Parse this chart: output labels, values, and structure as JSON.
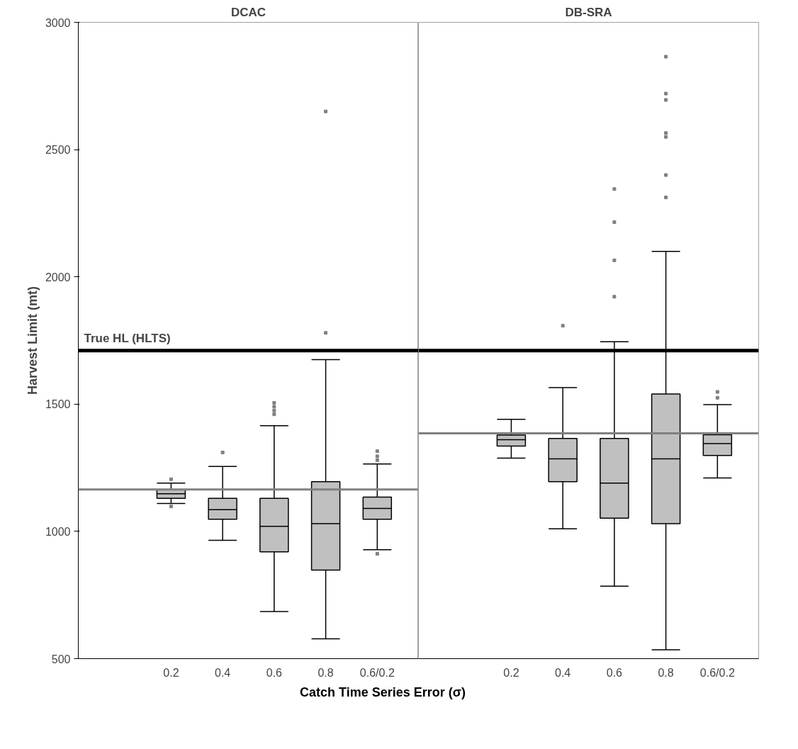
{
  "chart_data": [
    {
      "type": "box",
      "title": "DCAC",
      "xlabel": "Catch Time Series Error (σ)",
      "ylabel": "Harvest Limit (mt)",
      "categories": [
        "0.2",
        "0.4",
        "0.6",
        "0.8",
        "0.6/0.2"
      ],
      "series": [
        {
          "color": "#c0c0c0",
          "boxes": [
            {
              "low": 1110,
              "q1": 1130,
              "median": 1148,
              "q3": 1165,
              "high": 1190,
              "outliers": [
                1205,
                1098
              ]
            },
            {
              "low": 965,
              "q1": 1048,
              "median": 1085,
              "q3": 1130,
              "high": 1255,
              "outliers": [
                1310
              ]
            },
            {
              "low": 685,
              "q1": 920,
              "median": 1020,
              "q3": 1130,
              "high": 1415,
              "outliers": [
                1460,
                1475,
                1490,
                1505
              ]
            },
            {
              "low": 578,
              "q1": 848,
              "median": 1030,
              "q3": 1195,
              "high": 1675,
              "outliers": [
                1780,
                2650
              ]
            },
            {
              "low": 928,
              "q1": 1048,
              "median": 1090,
              "q3": 1135,
              "high": 1265,
              "outliers": [
                1280,
                1295,
                1315,
                912
              ]
            }
          ]
        }
      ],
      "ylim": [
        500,
        3000
      ],
      "yticks": [
        500,
        1000,
        1500,
        2000,
        2500,
        3000
      ],
      "grid": false,
      "ref_lines": [
        {
          "axis": "y",
          "value": 1710,
          "label": "True HL (HLTS)",
          "color": "#000000"
        },
        {
          "axis": "y",
          "value": 1165,
          "color": "#808080"
        }
      ]
    },
    {
      "type": "box",
      "title": "DB-SRA",
      "categories": [
        "0.2",
        "0.4",
        "0.6",
        "0.8",
        "0.6/0.2"
      ],
      "series": [
        {
          "color": "#c0c0c0",
          "boxes": [
            {
              "low": 1288,
              "q1": 1335,
              "median": 1360,
              "q3": 1378,
              "high": 1440
            },
            {
              "low": 1010,
              "q1": 1195,
              "median": 1285,
              "q3": 1365,
              "high": 1565,
              "outliers": [
                1808
              ]
            },
            {
              "low": 785,
              "q1": 1052,
              "median": 1190,
              "q3": 1365,
              "high": 1745,
              "outliers": [
                1922,
                2065,
                2215,
                2345
              ]
            },
            {
              "low": 535,
              "q1": 1030,
              "median": 1285,
              "q3": 1540,
              "high": 2100,
              "outliers": [
                2312,
                2400,
                2550,
                2565,
                2695,
                2720,
                2865
              ]
            },
            {
              "low": 1210,
              "q1": 1298,
              "median": 1345,
              "q3": 1380,
              "high": 1498,
              "outliers": [
                1525,
                1548
              ]
            }
          ]
        }
      ],
      "ylim": [
        500,
        3000
      ],
      "yticks": [
        500,
        1000,
        1500,
        2000,
        2500,
        3000
      ],
      "grid": false,
      "tick_labels": "x",
      "ref_lines": [
        {
          "axis": "y",
          "value": 1710,
          "color": "#000000"
        },
        {
          "axis": "y",
          "value": 1385,
          "color": "#808080"
        }
      ]
    }
  ]
}
